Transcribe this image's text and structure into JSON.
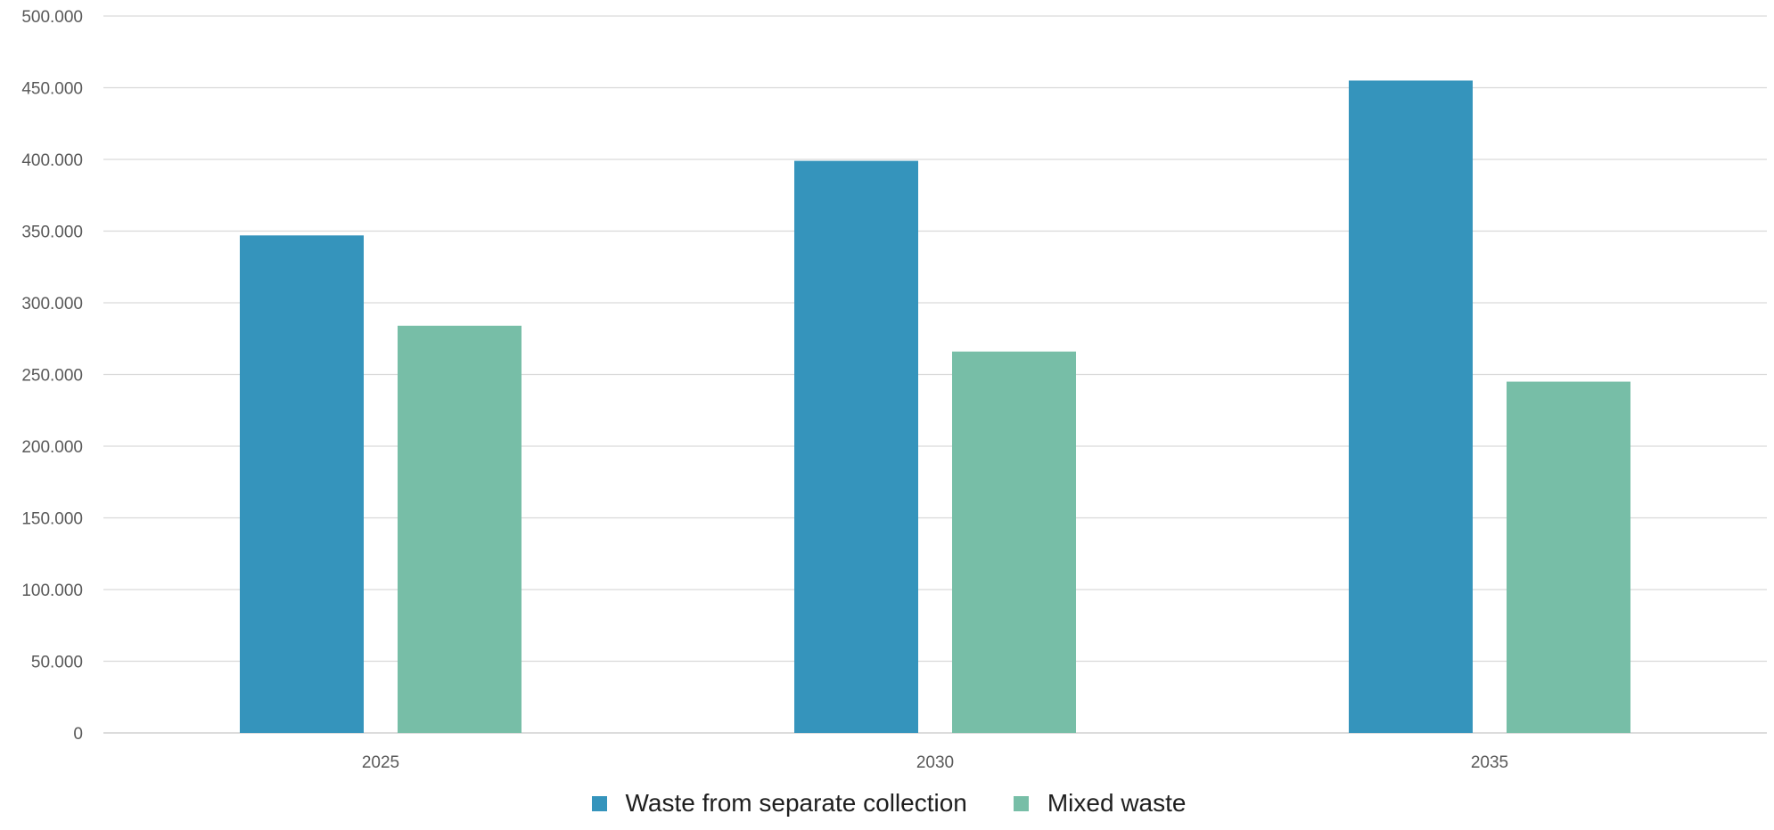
{
  "chart_data": {
    "type": "bar",
    "categories": [
      "2025",
      "2030",
      "2035"
    ],
    "series": [
      {
        "name": "Waste from separate collection",
        "values": [
          347000,
          399000,
          455000
        ],
        "color": "#3594bc"
      },
      {
        "name": "Mixed waste",
        "values": [
          284000,
          266000,
          245000
        ],
        "color": "#77bea7"
      }
    ],
    "ylim": [
      0,
      500000
    ],
    "yticks": [
      0,
      50000,
      100000,
      150000,
      200000,
      250000,
      300000,
      350000,
      400000,
      450000,
      500000
    ],
    "ytick_labels": [
      "0",
      "50.000",
      "100.000",
      "150.000",
      "200.000",
      "250.000",
      "300.000",
      "350.000",
      "400.000",
      "450.000",
      "500.000"
    ],
    "grid": true,
    "legend_position": "bottom",
    "title": "",
    "xlabel": "",
    "ylabel": ""
  }
}
